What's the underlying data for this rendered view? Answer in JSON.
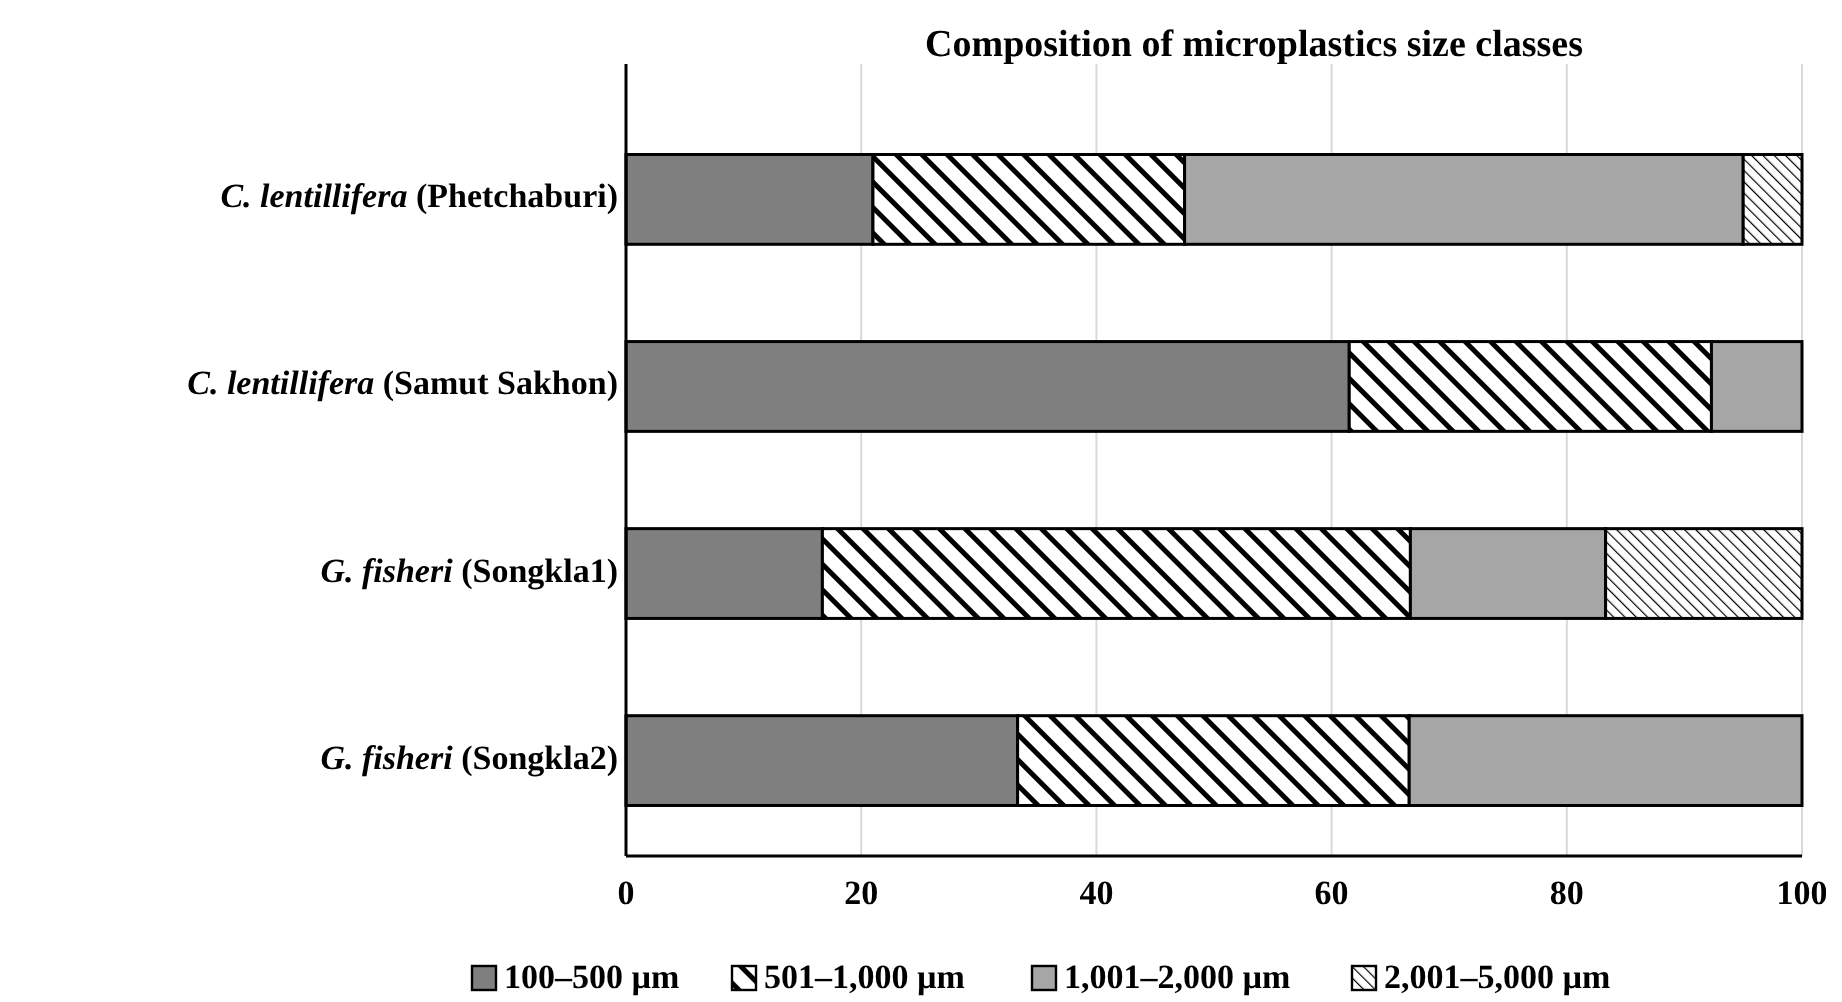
{
  "chart_data": {
    "type": "bar",
    "orientation": "horizontal",
    "stacked": true,
    "title": "Composition of microplastics size classes",
    "categories": [
      "C. lentillifera (Phetchaburi)",
      "C. lentillifera (Samut Sakhon)",
      "G. fisheri (Songkla1)",
      "G. fisheri (Songkla2)"
    ],
    "series": [
      {
        "name": "100–500 µm",
        "color": "#7f7f7f",
        "values": [
          21,
          61.5,
          16.7,
          33.3
        ]
      },
      {
        "name": "501–1,000 µm",
        "color": "#000000",
        "values": [
          26.5,
          30.8,
          50,
          33.3
        ]
      },
      {
        "name": "1,001–2,000 µm",
        "color": "#a6a6a6",
        "values": [
          47.5,
          7.7,
          16.6,
          33.4
        ]
      },
      {
        "name": "2,001–5,000 µm",
        "color": "#000000",
        "values": [
          5,
          0,
          16.7,
          0
        ]
      }
    ],
    "xlim": [
      0,
      100
    ],
    "xticks": [
      0,
      20,
      40,
      60,
      80,
      100
    ],
    "grid": "x",
    "legend": "bottom"
  }
}
